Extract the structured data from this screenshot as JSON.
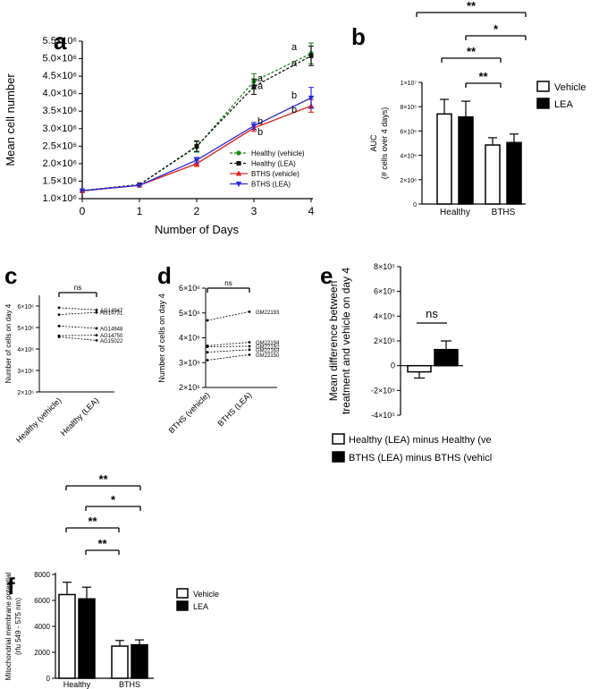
{
  "chart_data": [
    {
      "panel": "a",
      "type": "line",
      "x": [
        0,
        1,
        2,
        3,
        4
      ],
      "xlabel": "Number of Days",
      "ylabel": "Mean cell number",
      "yticks": [
        "1.0×10⁶",
        "1.5×10⁶",
        "2.0×10⁶",
        "2.5×10⁶",
        "3.0×10⁶",
        "3.5×10⁶",
        "4.0×10⁶",
        "4.5×10⁶",
        "5.0×10⁶",
        "5.5×10⁶"
      ],
      "ylim": [
        1000000,
        5500000
      ],
      "series": [
        {
          "name": "Healthy (vehicle)",
          "color": "#1a8a1a",
          "dash": true,
          "marker": "circle",
          "values": [
            1220000,
            1400000,
            2480000,
            4350000,
            5150000
          ],
          "err": [
            0,
            0,
            150000,
            220000,
            300000
          ]
        },
        {
          "name": "Healthy (LEA)",
          "color": "#111111",
          "dash": true,
          "marker": "square",
          "values": [
            1230000,
            1400000,
            2500000,
            4200000,
            5080000
          ],
          "err": [
            0,
            0,
            150000,
            220000,
            280000
          ]
        },
        {
          "name": "BTHS (vehicle)",
          "color": "#e0201c",
          "dash": false,
          "marker": "triangle",
          "values": [
            1220000,
            1380000,
            2000000,
            3020000,
            3650000
          ],
          "err": [
            0,
            0,
            80000,
            100000,
            180000
          ]
        },
        {
          "name": "BTHS (LEA)",
          "color": "#2a2ad6",
          "dash": false,
          "marker": "triangle-down",
          "values": [
            1230000,
            1380000,
            2100000,
            3080000,
            3880000
          ],
          "err": [
            0,
            0,
            80000,
            100000,
            300000
          ]
        }
      ],
      "annotations": [
        {
          "day": 3,
          "labels": [
            "a",
            "a",
            "b",
            "b"
          ]
        },
        {
          "day": 4,
          "labels": [
            "a",
            "a",
            "b",
            "b"
          ]
        }
      ]
    },
    {
      "panel": "b",
      "type": "bar",
      "categories": [
        "Healthy",
        "BTHS"
      ],
      "ylabel": "AUC",
      "ylabel2": "(# cells over 4 days)",
      "yticks": [
        "0",
        "2×10⁶",
        "4×10⁶",
        "6×10⁶",
        "8×10⁶",
        "1×10⁷"
      ],
      "ylim": [
        0,
        10000000
      ],
      "series": [
        {
          "name": "Vehicle",
          "values": [
            7400000,
            4850000
          ],
          "err": [
            1200000,
            600000
          ]
        },
        {
          "name": "LEA",
          "values": [
            7150000,
            5050000
          ],
          "err": [
            1300000,
            700000
          ]
        }
      ],
      "significance": [
        "**",
        "*",
        "**",
        "**"
      ]
    },
    {
      "panel": "c",
      "type": "line",
      "categories": [
        "Healthy (vehicle)",
        "Healthy (LEA)"
      ],
      "ylabel": "Number of cells on day 4",
      "yticks": [
        "2×10⁶",
        "3×10⁶",
        "4×10⁶",
        "5×10⁶",
        "6×10⁶"
      ],
      "ylim": [
        2000000,
        6000000
      ],
      "significance": "ns",
      "lines": [
        {
          "label": "AG14947",
          "values": [
            5920000,
            5820000
          ]
        },
        {
          "label": "AG14731",
          "values": [
            5600000,
            5700000
          ]
        },
        {
          "label": "AG14948",
          "values": [
            5070000,
            4960000
          ]
        },
        {
          "label": "AG14750",
          "values": [
            4620000,
            4640000
          ]
        },
        {
          "label": "AG15022",
          "values": [
            4560000,
            4400000
          ]
        }
      ]
    },
    {
      "panel": "d",
      "type": "line",
      "categories": [
        "BTHS (vehicle)",
        "BTHS (LEA)"
      ],
      "ylabel": "Number of cells on day 4",
      "yticks": [
        "2×10⁶",
        "3×10⁶",
        "4×10⁶",
        "5×10⁶",
        "6×10⁶"
      ],
      "ylim": [
        2000000,
        6000000
      ],
      "significance": "ns",
      "lines": [
        {
          "label": "GM22193",
          "values": [
            4700000,
            5050000
          ]
        },
        {
          "label": "GM22194",
          "values": [
            3680000,
            3820000
          ]
        },
        {
          "label": "GM22192",
          "values": [
            3640000,
            3660000
          ]
        },
        {
          "label": "GM22163",
          "values": [
            3420000,
            3520000
          ]
        },
        {
          "label": "GM22150",
          "values": [
            3100000,
            3320000
          ]
        }
      ]
    },
    {
      "panel": "e",
      "type": "bar",
      "ylabel": "Mean difference between",
      "ylabel2": "treatment and vehicle on day 4",
      "yticks": [
        "-4×10⁵",
        "-2×10⁵",
        "0",
        "2×10⁵",
        "4×10⁵",
        "6×10⁵",
        "8×10⁵"
      ],
      "ylim": [
        -400000,
        800000
      ],
      "series": [
        {
          "name": "Healthy (LEA) minus Healthy (ve",
          "value": -50000,
          "err": 50000
        },
        {
          "name": "BTHS (LEA) minus BTHS (vehicl",
          "value": 130000,
          "err": 70000
        }
      ],
      "significance": "ns"
    },
    {
      "panel": "f",
      "type": "bar",
      "categories": [
        "Healthy",
        "BTHS"
      ],
      "ylabel": "Mitochondrial membrane potential",
      "ylabel2": "(rfu 549 - 575 nm)",
      "yticks": [
        "0",
        "2000",
        "4000",
        "6000",
        "8000"
      ],
      "ylim": [
        0,
        8000
      ],
      "series": [
        {
          "name": "Vehicle",
          "values": [
            6450,
            2480
          ],
          "err": [
            950,
            430
          ]
        },
        {
          "name": "LEA",
          "values": [
            6120,
            2580
          ],
          "err": [
            900,
            380
          ]
        }
      ],
      "significance": [
        "**",
        "*",
        "**",
        "**"
      ]
    }
  ]
}
